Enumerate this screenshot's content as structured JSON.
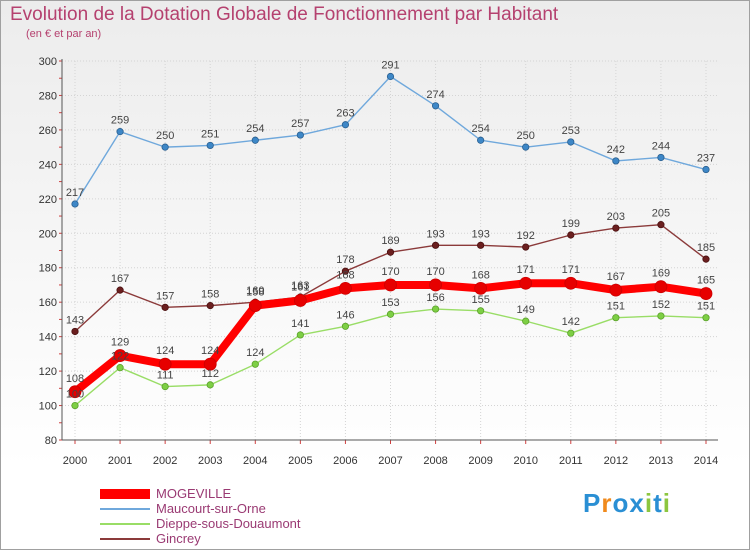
{
  "title": "Evolution de la Dotation Globale de Fonctionnement par Habitant",
  "subtitle": "(en € et par an)",
  "brand": {
    "text": "Proxiti",
    "colors": [
      "#2a8fd4",
      "#f08a1c",
      "#2a8fd4",
      "#2a8fd4",
      "#8cc63f",
      "#2a8fd4",
      "#8cc63f"
    ]
  },
  "chart_data": {
    "type": "line",
    "title": "Evolution de la Dotation Globale de Fonctionnement par Habitant",
    "subtitle": "(en € et par an)",
    "x": [
      "2000",
      "2001",
      "2002",
      "2003",
      "2004",
      "2005",
      "2006",
      "2007",
      "2008",
      "2009",
      "2010",
      "2011",
      "2012",
      "2013",
      "2014"
    ],
    "ylim": [
      80,
      300
    ],
    "yticks": [
      "80",
      "100",
      "120",
      "140",
      "160",
      "180",
      "200",
      "220",
      "240",
      "260",
      "280",
      "300"
    ],
    "grid": true,
    "legend_position": "bottom-left",
    "series": [
      {
        "name": "MOGEVILLE",
        "color": "#ff0000",
        "values": [
          108,
          129,
          124,
          124,
          158,
          161,
          168,
          170,
          170,
          168,
          171,
          171,
          167,
          169,
          165
        ]
      },
      {
        "name": "Maucourt-sur-Orne",
        "color": "#6fa8dc",
        "values": [
          217,
          259,
          250,
          251,
          254,
          257,
          263,
          291,
          274,
          254,
          250,
          253,
          242,
          244,
          237
        ]
      },
      {
        "name": "Dieppe-sous-Douaumont",
        "color": "#99dd66",
        "values": [
          100,
          122,
          111,
          112,
          124,
          141,
          146,
          153,
          156,
          155,
          149,
          142,
          151,
          152,
          151
        ]
      },
      {
        "name": "Gincrey",
        "color": "#8b3a3a",
        "values": [
          143,
          167,
          157,
          158,
          160,
          163,
          178,
          189,
          193,
          193,
          192,
          199,
          203,
          205,
          185
        ]
      }
    ]
  }
}
